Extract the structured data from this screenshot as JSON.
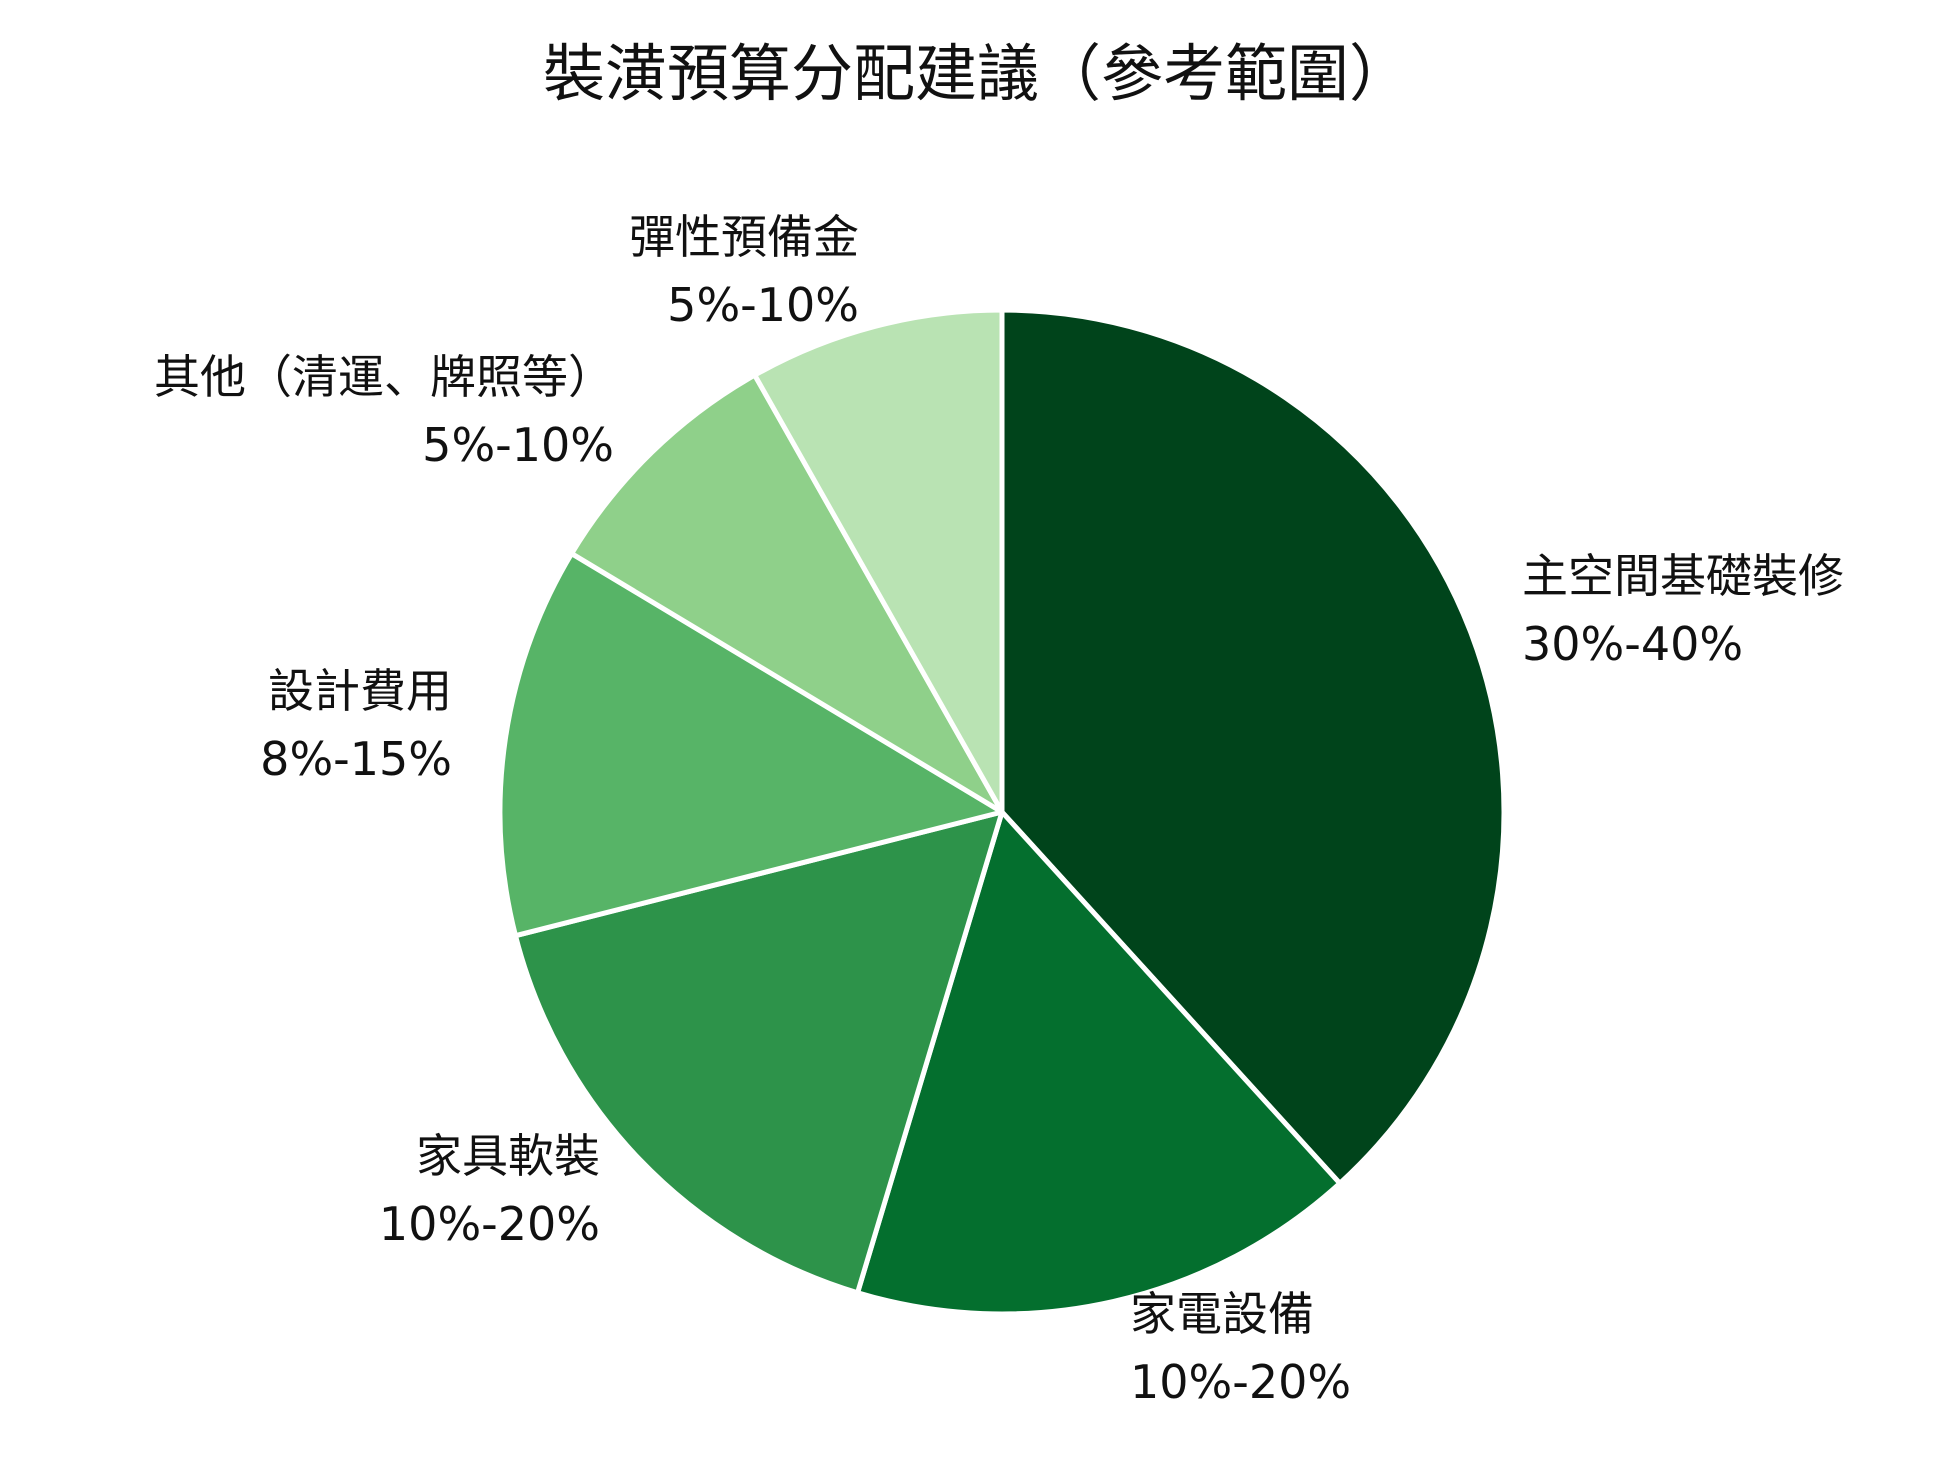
{
  "chart_data": {
    "type": "pie",
    "title": "裝潢預算分配建議（參考範圍）",
    "start_angle_deg": 0,
    "direction": "clockwise",
    "slice_border_color": "#ffffff",
    "slices": [
      {
        "name": "主空間基礎裝修",
        "range": "30%-40%",
        "value": 35,
        "color": "#00441b"
      },
      {
        "name": "家電設備",
        "range": "10%-20%",
        "value": 15,
        "color": "#046f2e"
      },
      {
        "name": "家具軟裝",
        "range": "10%-20%",
        "value": 15,
        "color": "#2d934a"
      },
      {
        "name": "設計費用",
        "range": "8%-15%",
        "value": 11.5,
        "color": "#57b467"
      },
      {
        "name": "其他（清運、牌照等）",
        "range": "5%-10%",
        "value": 7.5,
        "color": "#8fd08a"
      },
      {
        "name": "彈性預備金",
        "range": "5%-10%",
        "value": 7.5,
        "color": "#b9e3b3"
      }
    ]
  }
}
